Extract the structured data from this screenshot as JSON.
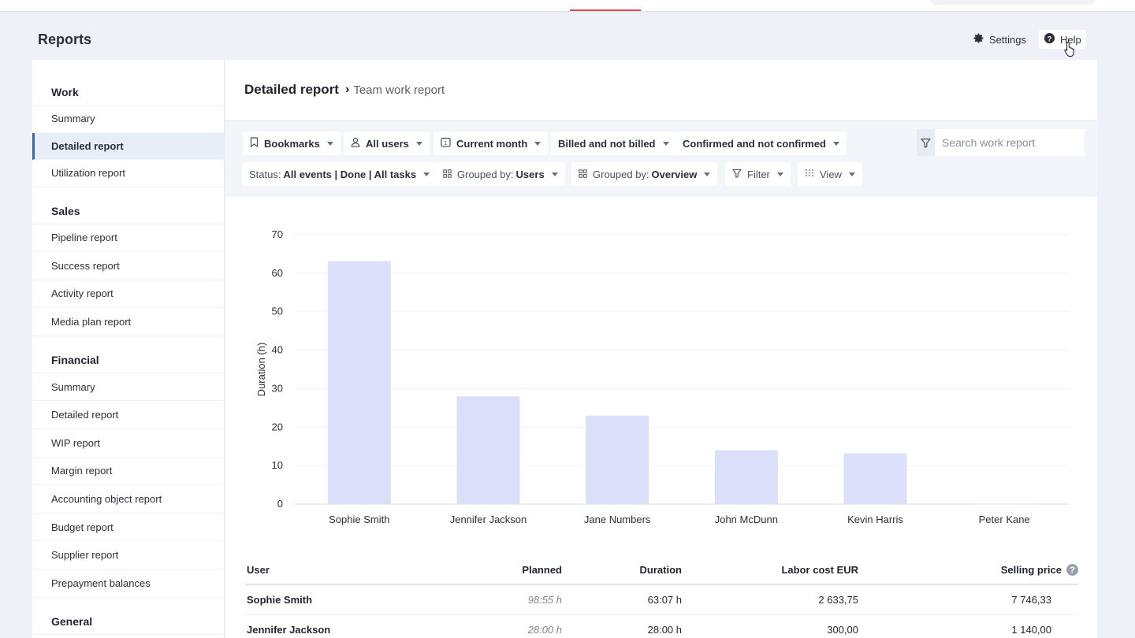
{
  "page": {
    "title": "Reports"
  },
  "header": {
    "settings_label": "Settings",
    "help_label": "Help"
  },
  "sidebar": {
    "sections": [
      {
        "title": "Work",
        "items": [
          {
            "label": "Summary",
            "active": false
          },
          {
            "label": "Detailed report",
            "active": true
          },
          {
            "label": "Utilization report",
            "active": false
          }
        ]
      },
      {
        "title": "Sales",
        "items": [
          {
            "label": "Pipeline report",
            "active": false
          },
          {
            "label": "Success report",
            "active": false
          },
          {
            "label": "Activity report",
            "active": false
          },
          {
            "label": "Media plan report",
            "active": false
          }
        ]
      },
      {
        "title": "Financial",
        "items": [
          {
            "label": "Summary",
            "active": false
          },
          {
            "label": "Detailed report",
            "active": false
          },
          {
            "label": "WIP report",
            "active": false
          },
          {
            "label": "Margin report",
            "active": false
          },
          {
            "label": "Accounting object report",
            "active": false
          },
          {
            "label": "Budget report",
            "active": false
          },
          {
            "label": "Supplier report",
            "active": false
          },
          {
            "label": "Prepayment balances",
            "active": false
          }
        ]
      },
      {
        "title": "General",
        "items": []
      }
    ]
  },
  "breadcrumb": {
    "main": "Detailed report",
    "separator": "›",
    "sub": "Team work report"
  },
  "filters": {
    "bookmarks": "Bookmarks",
    "users": "All users",
    "period": "Current month",
    "billing": "Billed and not billed",
    "confirmation": "Confirmed and not confirmed",
    "status_prefix": "Status:",
    "status_value": "All events | Done | All tasks",
    "group1_prefix": "Grouped by:",
    "group1_value": "Users",
    "group2_prefix": "Grouped by:",
    "group2_value": "Overview",
    "filter": "Filter",
    "view": "View"
  },
  "search": {
    "placeholder": "Search work report"
  },
  "chart_data": {
    "type": "bar",
    "categories": [
      "Sophie Smith",
      "Jennifer Jackson",
      "Jane Numbers",
      "John McDunn",
      "Kevin Harris",
      "Peter Kane"
    ],
    "values": [
      63.12,
      28.0,
      23.0,
      14.0,
      13.2,
      0.1
    ],
    "ylabel": "Duration (h)",
    "ylim": [
      0,
      70
    ],
    "yticks": [
      0,
      10,
      20,
      30,
      40,
      50,
      60,
      70
    ],
    "grid": true,
    "bar_color": "#dcdffa"
  },
  "table": {
    "headers": {
      "user": "User",
      "planned": "Planned",
      "duration": "Duration",
      "labor": "Labor cost EUR",
      "selling": "Selling price"
    },
    "rows": [
      {
        "user": "Sophie Smith",
        "planned": "98:55 h",
        "duration": "63:07 h",
        "labor": "2 633,75",
        "selling": "7 746,33"
      },
      {
        "user": "Jennifer Jackson",
        "planned": "28:00 h",
        "duration": "28:00 h",
        "labor": "300,00",
        "selling": "1 140,00"
      }
    ]
  }
}
